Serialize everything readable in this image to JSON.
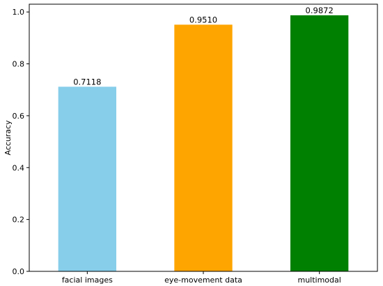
{
  "chart_data": {
    "type": "bar",
    "title": "",
    "xlabel": "",
    "ylabel": "Accuracy",
    "categories": [
      "facial images",
      "eye-movement data",
      "multimodal"
    ],
    "values": [
      0.7118,
      0.951,
      0.9872
    ],
    "value_labels": [
      "0.7118",
      "0.9510",
      "0.9872"
    ],
    "colors": [
      "#87CEEB",
      "#FFA500",
      "#008000"
    ],
    "ylim": [
      0.0,
      1.03
    ],
    "yticks": [
      0.0,
      0.2,
      0.4,
      0.6,
      0.8,
      1.0
    ],
    "ytick_labels": [
      "0.0",
      "0.2",
      "0.4",
      "0.6",
      "0.8",
      "1.0"
    ],
    "grid": false,
    "legend": "none"
  }
}
